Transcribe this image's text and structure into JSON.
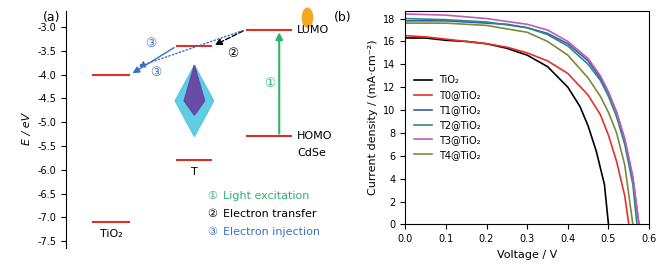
{
  "chart_data": [
    {
      "type": "energy_level",
      "title": "(a)",
      "y_label": "E / eV",
      "ylim": [
        -7.65,
        -2.65
      ],
      "yticks": [
        -3.0,
        -3.5,
        -4.0,
        -4.5,
        -5.0,
        -5.5,
        -6.0,
        -6.5,
        -7.0,
        -7.5
      ],
      "tick_labels": "y",
      "levels": [
        {
          "material": "TiO₂",
          "lumo": -4.0,
          "homo": -7.1
        },
        {
          "material": "T",
          "lumo": -3.4,
          "homo": -5.8
        },
        {
          "material": "CdSe",
          "lumo": -3.05,
          "homo": -5.3
        }
      ],
      "level_names": [
        "LUMO",
        "HOMO"
      ],
      "steps": [
        {
          "symbol": "①",
          "text": "Light excitation",
          "color": "#2fb36b"
        },
        {
          "symbol": "②",
          "text": "Electron transfer",
          "color": "#000000"
        },
        {
          "symbol": "③",
          "text": "Electron injection",
          "color": "#3a6fc4"
        }
      ]
    },
    {
      "type": "line",
      "title": "(b)",
      "x_label": "Voltage / V",
      "y_label": "Current density / (mA·cm⁻²)",
      "xlim": [
        0.0,
        0.6
      ],
      "xticks": [
        0.0,
        0.1,
        0.2,
        0.3,
        0.4,
        0.5,
        0.6
      ],
      "ylim": [
        0,
        18.7
      ],
      "yticks": [
        0,
        2,
        4,
        6,
        8,
        10,
        12,
        14,
        16,
        18
      ],
      "legend": "center left",
      "series": [
        {
          "name": "TiO₂",
          "color": "#000000",
          "x": [
            0.0,
            0.05,
            0.1,
            0.15,
            0.2,
            0.25,
            0.3,
            0.35,
            0.4,
            0.43,
            0.45,
            0.47,
            0.49,
            0.5
          ],
          "values": [
            16.3,
            16.3,
            16.1,
            16.0,
            15.8,
            15.4,
            14.8,
            13.8,
            12.0,
            10.3,
            8.6,
            6.4,
            3.5,
            0
          ]
        },
        {
          "name": "T0@TiO₂",
          "color": "#e8302a",
          "x": [
            0.0,
            0.05,
            0.1,
            0.15,
            0.2,
            0.25,
            0.3,
            0.35,
            0.4,
            0.45,
            0.48,
            0.5,
            0.52,
            0.54,
            0.55
          ],
          "values": [
            16.5,
            16.4,
            16.2,
            16.0,
            15.8,
            15.5,
            15.0,
            14.3,
            13.2,
            11.3,
            9.6,
            7.8,
            5.5,
            2.5,
            0
          ]
        },
        {
          "name": "T1@TiO₂",
          "color": "#3b5ba8",
          "x": [
            0.0,
            0.1,
            0.2,
            0.25,
            0.3,
            0.35,
            0.4,
            0.45,
            0.48,
            0.5,
            0.52,
            0.54,
            0.56,
            0.575
          ],
          "values": [
            17.8,
            17.8,
            17.6,
            17.5,
            17.2,
            16.7,
            15.8,
            14.3,
            12.8,
            11.5,
            9.8,
            7.4,
            4.0,
            0
          ]
        },
        {
          "name": "T2@TiO₂",
          "color": "#2a8a8a",
          "x": [
            0.0,
            0.1,
            0.2,
            0.3,
            0.35,
            0.4,
            0.45,
            0.48,
            0.5,
            0.52,
            0.54,
            0.56,
            0.57
          ],
          "values": [
            18.0,
            17.9,
            17.7,
            17.2,
            16.6,
            15.6,
            14.0,
            12.6,
            11.2,
            9.4,
            7.0,
            3.5,
            0
          ]
        },
        {
          "name": "T3@TiO₂",
          "color": "#c05ab8",
          "x": [
            0.0,
            0.1,
            0.2,
            0.3,
            0.35,
            0.4,
            0.45,
            0.48,
            0.5,
            0.52,
            0.54,
            0.56,
            0.575
          ],
          "values": [
            18.4,
            18.3,
            18.0,
            17.5,
            17.0,
            16.0,
            14.5,
            13.0,
            11.6,
            9.8,
            7.5,
            4.2,
            0
          ]
        },
        {
          "name": "T4@TiO₂",
          "color": "#7a8a3a",
          "x": [
            0.0,
            0.1,
            0.2,
            0.3,
            0.35,
            0.4,
            0.45,
            0.48,
            0.5,
            0.52,
            0.54,
            0.56
          ],
          "values": [
            17.6,
            17.6,
            17.4,
            16.8,
            16.0,
            14.8,
            12.8,
            11.2,
            9.8,
            8.0,
            5.2,
            0
          ]
        }
      ]
    }
  ]
}
